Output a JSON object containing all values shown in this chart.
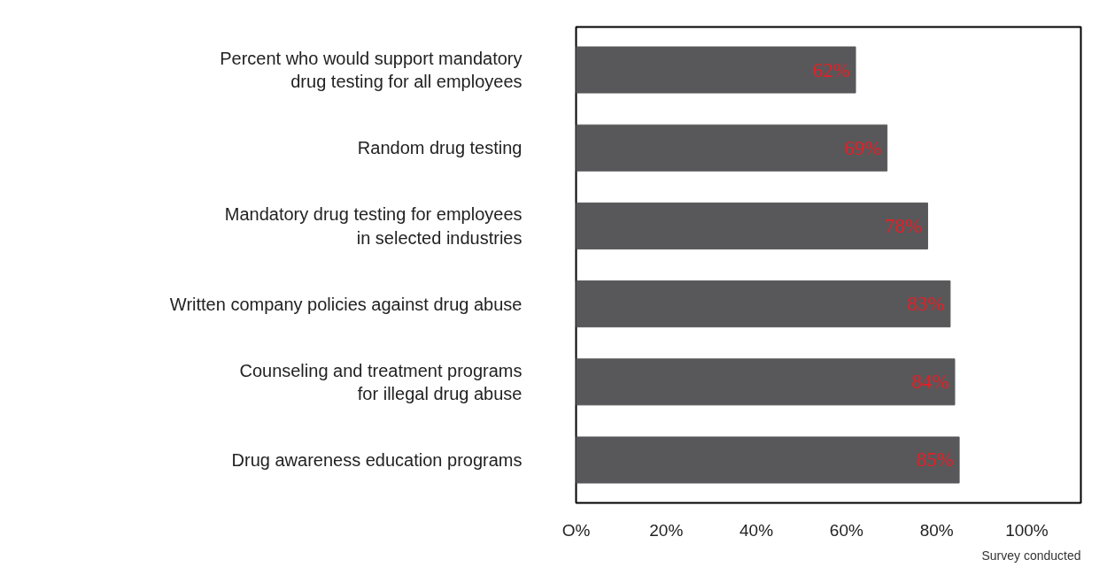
{
  "chart_data": {
    "type": "bar",
    "orientation": "horizontal",
    "categories": [
      "Percent who would support mandatory\ndrug testing for all employees",
      "Random drug testing",
      "Mandatory drug testing for employees\nin selected industries",
      "Written company policies against drug abuse",
      "Counseling and treatment programs\nfor illegal drug abuse",
      "Drug awareness education programs"
    ],
    "values": [
      62,
      69,
      78,
      83,
      84,
      85
    ],
    "color": "#58585a",
    "value_labels": [
      "62%",
      "69%",
      "78%",
      "83%",
      "84%",
      "85%"
    ],
    "xlim": [
      0,
      112
    ],
    "xticks": [
      {
        "value": 0,
        "label": "O%"
      },
      {
        "value": 20,
        "label": "20%"
      },
      {
        "value": 40,
        "label": "40%"
      },
      {
        "value": 60,
        "label": "60%"
      },
      {
        "value": 80,
        "label": "80%"
      },
      {
        "value": 100,
        "label": "100%"
      }
    ],
    "grid": false,
    "annotations": [
      "Survey conducted"
    ]
  }
}
